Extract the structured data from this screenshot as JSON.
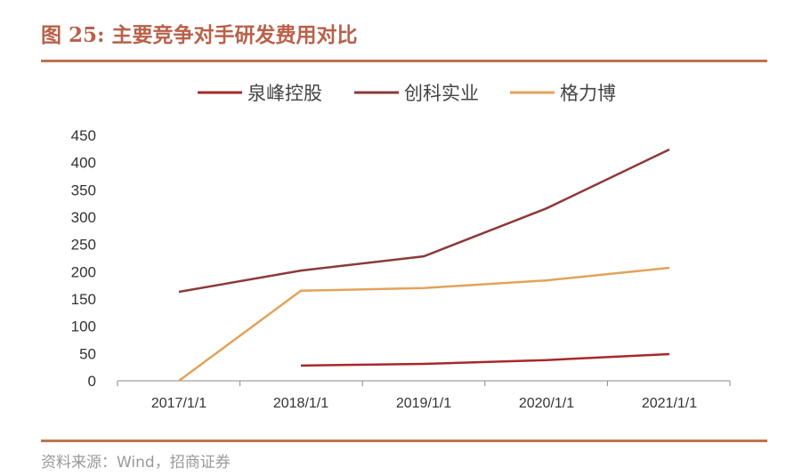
{
  "title": "图 25: 主要竞争对手研发费用对比",
  "source": "资料来源：Wind，招商证券",
  "chart_data": {
    "type": "line",
    "categories": [
      "2017/1/1",
      "2018/1/1",
      "2019/1/1",
      "2020/1/1",
      "2021/1/1"
    ],
    "ylim": [
      0,
      450
    ],
    "yticks": [
      0,
      50,
      100,
      150,
      200,
      250,
      300,
      350,
      400,
      450
    ],
    "grid": false,
    "legend": "top",
    "series": [
      {
        "name": "泉峰控股",
        "color": "#a8282a",
        "values": [
          null,
          28,
          31,
          38,
          49
        ]
      },
      {
        "name": "创科实业",
        "color": "#8c3a3a",
        "values": [
          163,
          202,
          228,
          316,
          424
        ]
      },
      {
        "name": "格力博",
        "color": "#e2a35a",
        "values": [
          0,
          165,
          170,
          184,
          207
        ]
      }
    ]
  }
}
